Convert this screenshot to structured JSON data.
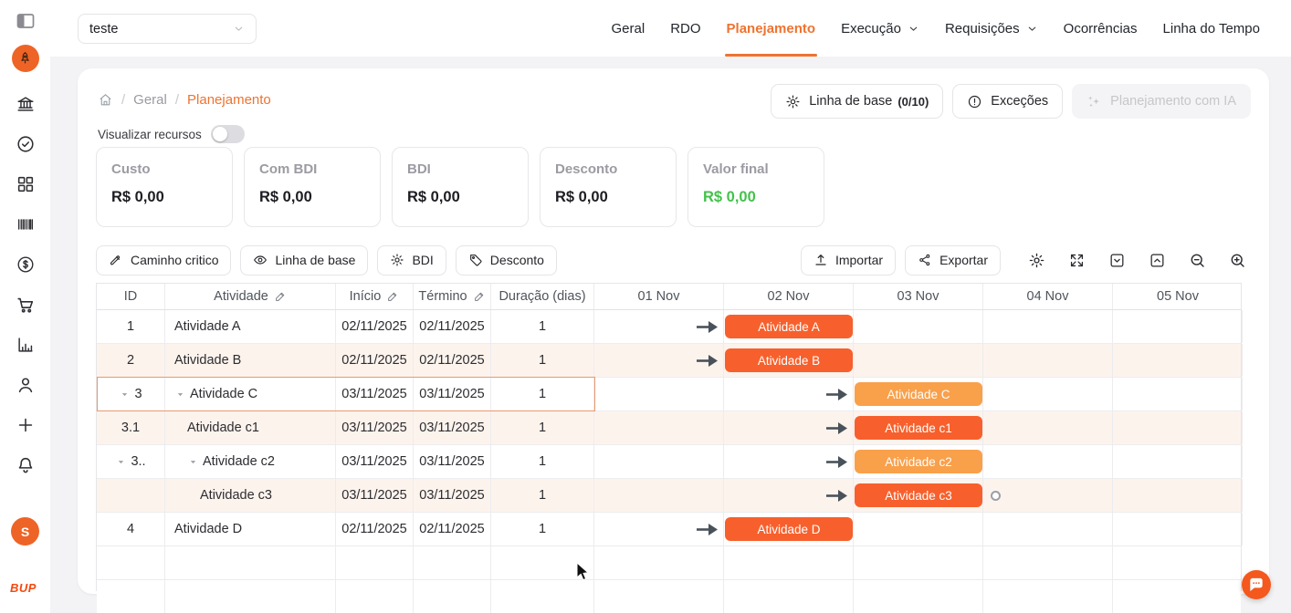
{
  "header": {
    "project_select": {
      "value": "teste"
    },
    "nav_tabs": [
      {
        "label": "Geral",
        "active": false,
        "chevron": false
      },
      {
        "label": "RDO",
        "active": false,
        "chevron": false
      },
      {
        "label": "Planejamento",
        "active": true,
        "chevron": false
      },
      {
        "label": "Execução",
        "active": false,
        "chevron": true
      },
      {
        "label": "Requisições",
        "active": false,
        "chevron": true
      },
      {
        "label": "Ocorrências",
        "active": false,
        "chevron": false
      },
      {
        "label": "Linha do Tempo",
        "active": false,
        "chevron": false
      }
    ]
  },
  "sidebar": {
    "items": [
      {
        "icon": "bank"
      },
      {
        "icon": "check-circle"
      },
      {
        "icon": "grid"
      },
      {
        "icon": "barcode"
      },
      {
        "icon": "dollar-circle"
      },
      {
        "icon": "cart"
      },
      {
        "icon": "bar-chart"
      },
      {
        "icon": "user"
      },
      {
        "icon": "plus"
      },
      {
        "icon": "bell"
      }
    ],
    "avatar_initial": "S",
    "logo_text": "BUP"
  },
  "breadcrumb": {
    "items": [
      {
        "label": "Geral",
        "current": false
      },
      {
        "label": "Planejamento",
        "current": true
      }
    ]
  },
  "page_actions": {
    "baseline": {
      "icon": "gear",
      "label": "Linha de base",
      "count": "(0/10)"
    },
    "exceptions": {
      "icon": "info",
      "label": "Exceções"
    },
    "ai_planning": {
      "icon": "sparkles",
      "label": "Planejamento com IA",
      "disabled": true
    }
  },
  "resources_toggle": {
    "label": "Visualizar recursos",
    "on": false
  },
  "stats_cards": [
    {
      "label": "Custo",
      "value": "R$ 0,00",
      "highlight": false
    },
    {
      "label": "Com BDI",
      "value": "R$ 0,00",
      "highlight": false
    },
    {
      "label": "BDI",
      "value": "R$ 0,00",
      "highlight": false
    },
    {
      "label": "Desconto",
      "value": "R$ 0,00",
      "highlight": false
    },
    {
      "label": "Valor final",
      "value": "R$ 0,00",
      "highlight": true
    }
  ],
  "gantt_toolbar": {
    "left_buttons": [
      {
        "icon": "pen",
        "label": "Caminho critico"
      },
      {
        "icon": "eye",
        "label": "Linha de base"
      },
      {
        "icon": "gear",
        "label": "BDI"
      },
      {
        "icon": "tag",
        "label": "Desconto"
      }
    ],
    "right_buttons": [
      {
        "icon": "upload",
        "label": "Importar"
      },
      {
        "icon": "share",
        "label": "Exportar"
      }
    ],
    "right_icons": [
      {
        "icon": "gear",
        "name": "settings"
      },
      {
        "icon": "expand",
        "name": "fullscreen"
      },
      {
        "icon": "collapse-all",
        "name": "collapse-all"
      },
      {
        "icon": "expand-all",
        "name": "expand-all"
      },
      {
        "icon": "zoom-out",
        "name": "zoom-out"
      },
      {
        "icon": "zoom-in",
        "name": "zoom-in"
      }
    ]
  },
  "gantt": {
    "columns": [
      {
        "label": "ID",
        "editable": false
      },
      {
        "label": "Atividade",
        "editable": true
      },
      {
        "label": "Início",
        "editable": true
      },
      {
        "label": "Término",
        "editable": true
      },
      {
        "label": "Duração (dias)",
        "editable": false
      }
    ],
    "date_columns": [
      "01 Nov",
      "02 Nov",
      "03 Nov",
      "04 Nov",
      "05 Nov"
    ],
    "rows": [
      {
        "id": "1",
        "id_caret": false,
        "activity": "Atividade A",
        "act_caret": false,
        "indent": 0,
        "start": "02/11/2025",
        "end": "02/11/2025",
        "duration": "1",
        "stripe": false,
        "selected": false,
        "bar": {
          "col": 1,
          "type": "leaf",
          "label": "Atividade A",
          "arrow": true,
          "dot": false
        }
      },
      {
        "id": "2",
        "id_caret": false,
        "activity": "Atividade B",
        "act_caret": false,
        "indent": 0,
        "start": "02/11/2025",
        "end": "02/11/2025",
        "duration": "1",
        "stripe": true,
        "selected": false,
        "bar": {
          "col": 1,
          "type": "leaf",
          "label": "Atividade B",
          "arrow": true,
          "dot": false
        }
      },
      {
        "id": "3",
        "id_caret": true,
        "activity": "Atividade C",
        "act_caret": true,
        "indent": 0,
        "start": "03/11/2025",
        "end": "03/11/2025",
        "duration": "1",
        "stripe": false,
        "selected": true,
        "bar": {
          "col": 2,
          "type": "parent",
          "label": "Atividade C",
          "arrow": true,
          "dot": false
        }
      },
      {
        "id": "3.1",
        "id_caret": false,
        "activity": "Atividade c1",
        "act_caret": false,
        "indent": 1,
        "start": "03/11/2025",
        "end": "03/11/2025",
        "duration": "1",
        "stripe": true,
        "selected": false,
        "bar": {
          "col": 2,
          "type": "leaf",
          "label": "Atividade c1",
          "arrow": true,
          "dot": false
        }
      },
      {
        "id": "3..",
        "id_caret": true,
        "activity": "Atividade c2",
        "act_caret": true,
        "indent": 1,
        "start": "03/11/2025",
        "end": "03/11/2025",
        "duration": "1",
        "stripe": false,
        "selected": false,
        "bar": {
          "col": 2,
          "type": "parent",
          "label": "Atividade c2",
          "arrow": true,
          "dot": false
        }
      },
      {
        "id": "",
        "id_caret": false,
        "activity": "Atividade c3",
        "act_caret": false,
        "indent": 2,
        "start": "03/11/2025",
        "end": "03/11/2025",
        "duration": "1",
        "stripe": true,
        "selected": false,
        "bar": {
          "col": 2,
          "type": "leaf",
          "label": "Atividade c3",
          "arrow": true,
          "dot": true
        }
      },
      {
        "id": "4",
        "id_caret": false,
        "activity": "Atividade D",
        "act_caret": false,
        "indent": 0,
        "start": "02/11/2025",
        "end": "02/11/2025",
        "duration": "1",
        "stripe": false,
        "selected": false,
        "bar": {
          "col": 1,
          "type": "leaf",
          "label": "Atividade D",
          "arrow": true,
          "dot": false
        }
      }
    ]
  },
  "colors": {
    "accent": "#ee7330",
    "bar_leaf": "#f7602c",
    "bar_parent": "#f9a04b",
    "value_green": "#43c14b",
    "row_stripe": "#fdf3ed",
    "selected_outline": "#e9996e"
  }
}
